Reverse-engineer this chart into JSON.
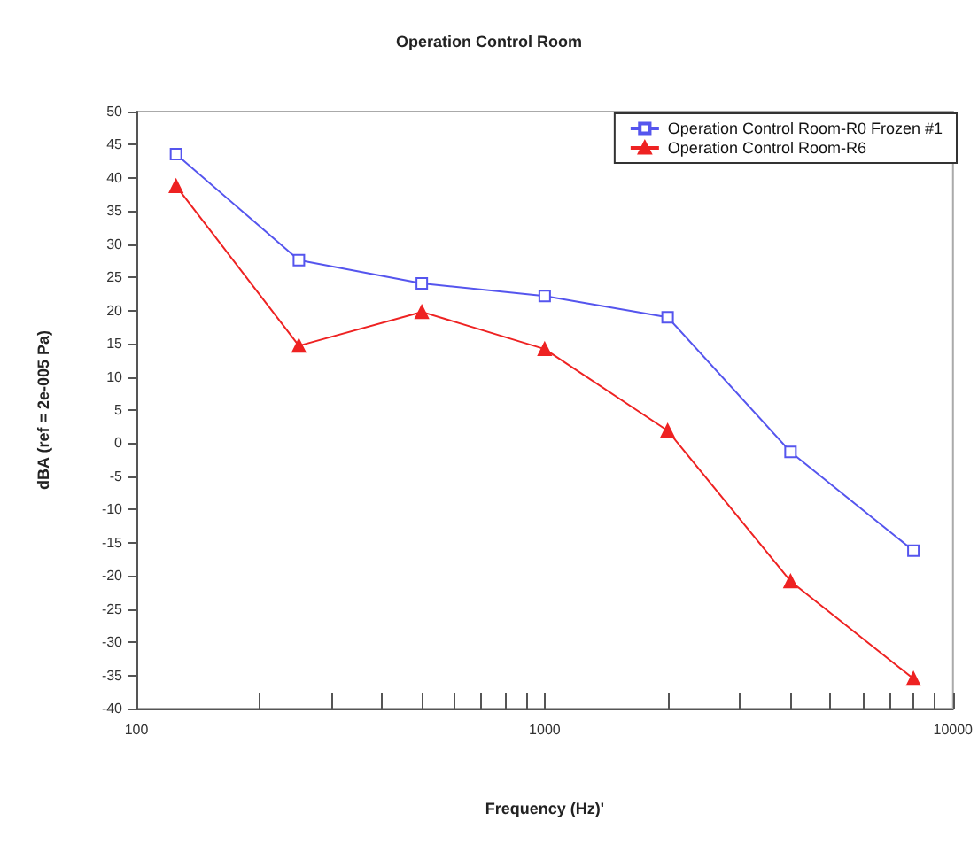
{
  "chart_data": {
    "type": "line",
    "title": "Operation Control Room",
    "xlabel": "Frequency (Hz)'",
    "ylabel": "dBA (ref = 2e-005 Pa)",
    "x": [
      125,
      250,
      500,
      1000,
      2000,
      4000,
      8000
    ],
    "series": [
      {
        "name": "Operation Control Room-R0 Frozen #1",
        "color": "#5555ee",
        "marker": "square",
        "values": [
          43.6,
          27.6,
          24.1,
          22.2,
          19.0,
          -1.3,
          -16.2
        ]
      },
      {
        "name": "Operation Control Room-R6",
        "color": "#ee2222",
        "marker": "triangle",
        "values": [
          38.8,
          14.7,
          19.8,
          14.2,
          1.9,
          -20.8,
          -35.5
        ]
      }
    ],
    "log": "x",
    "xlim": [
      100,
      10000
    ],
    "xticks": [
      100,
      {
        "value": 200,
        "label": null
      },
      {
        "value": 300,
        "label": null
      },
      {
        "value": 400,
        "label": null
      },
      {
        "value": 500,
        "label": null
      },
      {
        "value": 600,
        "label": null
      },
      {
        "value": 700,
        "label": null
      },
      {
        "value": 800,
        "label": null
      },
      {
        "value": 900,
        "label": null
      },
      1000,
      {
        "value": 2000,
        "label": null
      },
      {
        "value": 3000,
        "label": null
      },
      {
        "value": 4000,
        "label": null
      },
      {
        "value": 5000,
        "label": null
      },
      {
        "value": 6000,
        "label": null
      },
      {
        "value": 7000,
        "label": null
      },
      {
        "value": 8000,
        "label": null
      },
      {
        "value": 9000,
        "label": null
      },
      10000
    ],
    "ylim": [
      -40,
      50
    ],
    "yticks": [
      -40,
      -35,
      -30,
      -25,
      -20,
      -15,
      -10,
      -5,
      0,
      5,
      10,
      15,
      20,
      25,
      30,
      35,
      40,
      45,
      50
    ],
    "grid": false,
    "legend": "top right",
    "line_style": "solid"
  }
}
